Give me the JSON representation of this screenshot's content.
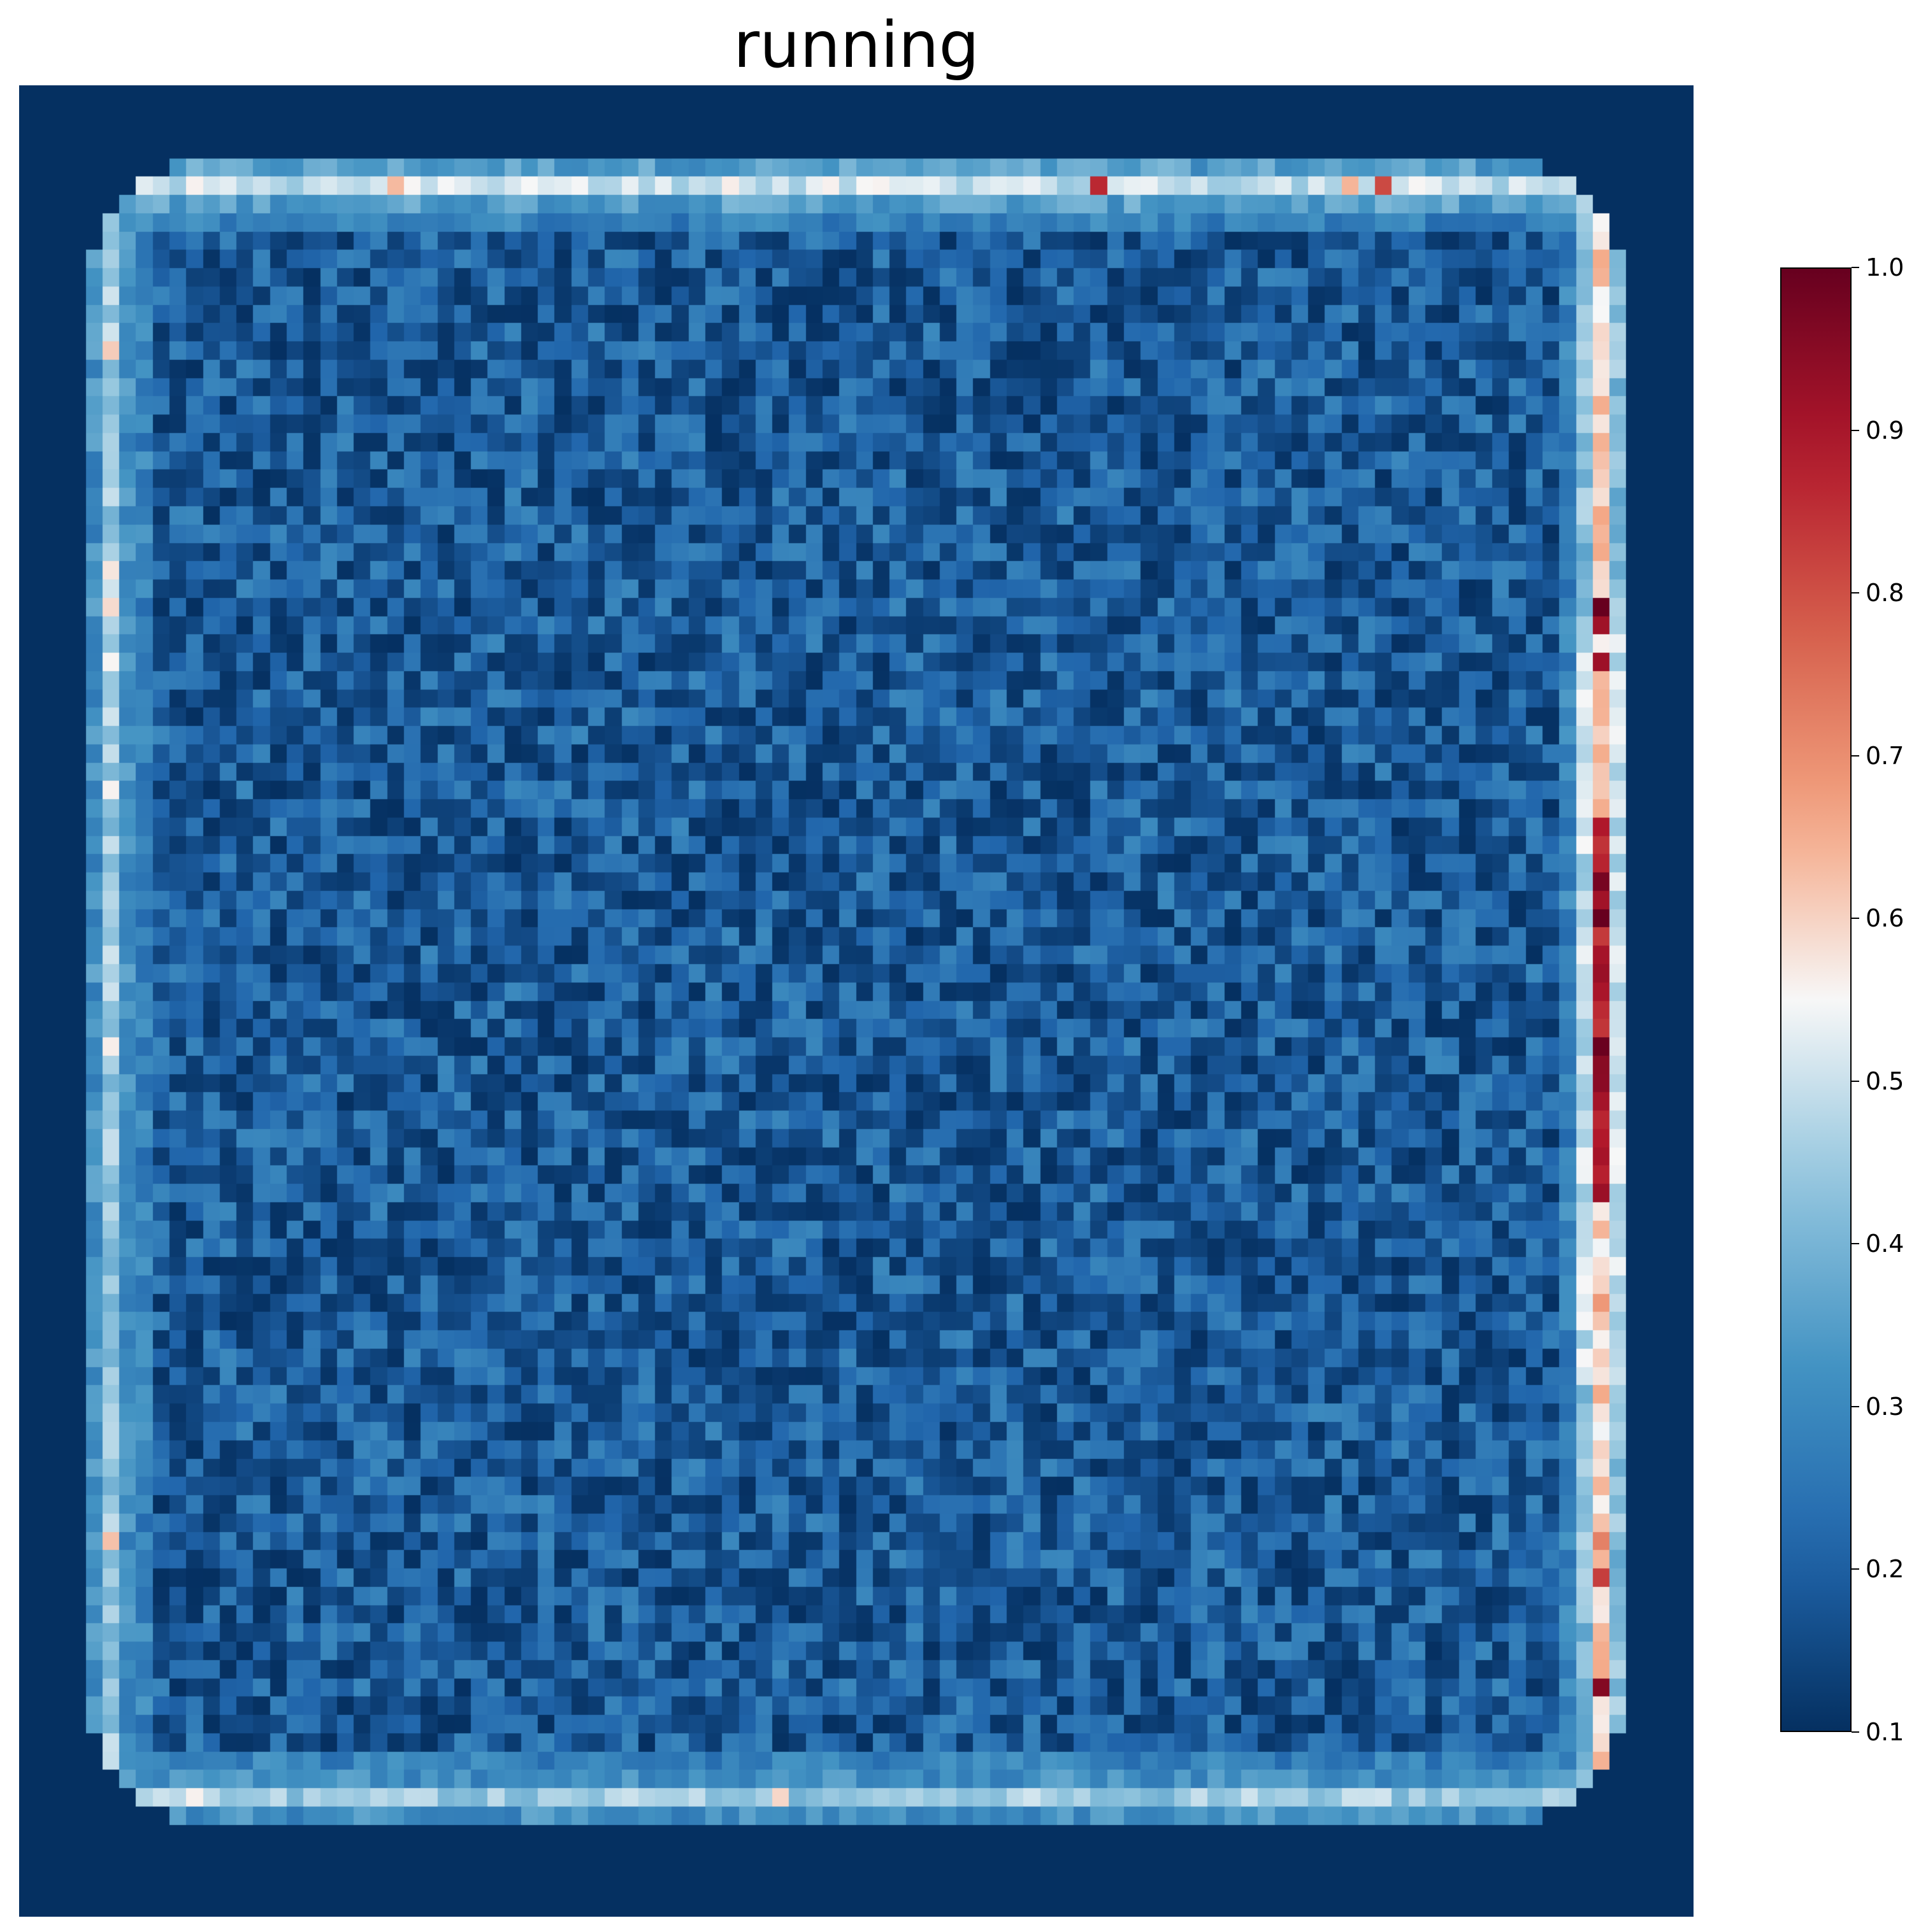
{
  "chart_data": {
    "type": "heatmap",
    "title": "running",
    "grid_rows": 100,
    "grid_cols": 100,
    "colormap": "RdBu_r",
    "colorbar": {
      "range": [
        0.1,
        1.0
      ],
      "ticks": [
        "1.0",
        "0.9",
        "0.8",
        "0.7",
        "0.6",
        "0.5",
        "0.4",
        "0.3",
        "0.2",
        "0.1"
      ],
      "placement": "right"
    },
    "background_value": 0.1,
    "interior_value_range": [
      0.1,
      0.3
    ],
    "edges": {
      "top": {
        "row": 5,
        "typical_value": 0.5,
        "peak_value": 0.9
      },
      "bottom": {
        "row": 93,
        "typical_value": 0.45,
        "peak_value": 0.65
      },
      "left": {
        "col": 5,
        "typical_value": 0.45,
        "peak_value": 0.65
      },
      "right": {
        "col": 94,
        "typical_value": 0.6,
        "peak_value": 1.0,
        "peak_rows": [
          40,
          60
        ]
      }
    },
    "axes_visible": false,
    "grid": false
  }
}
